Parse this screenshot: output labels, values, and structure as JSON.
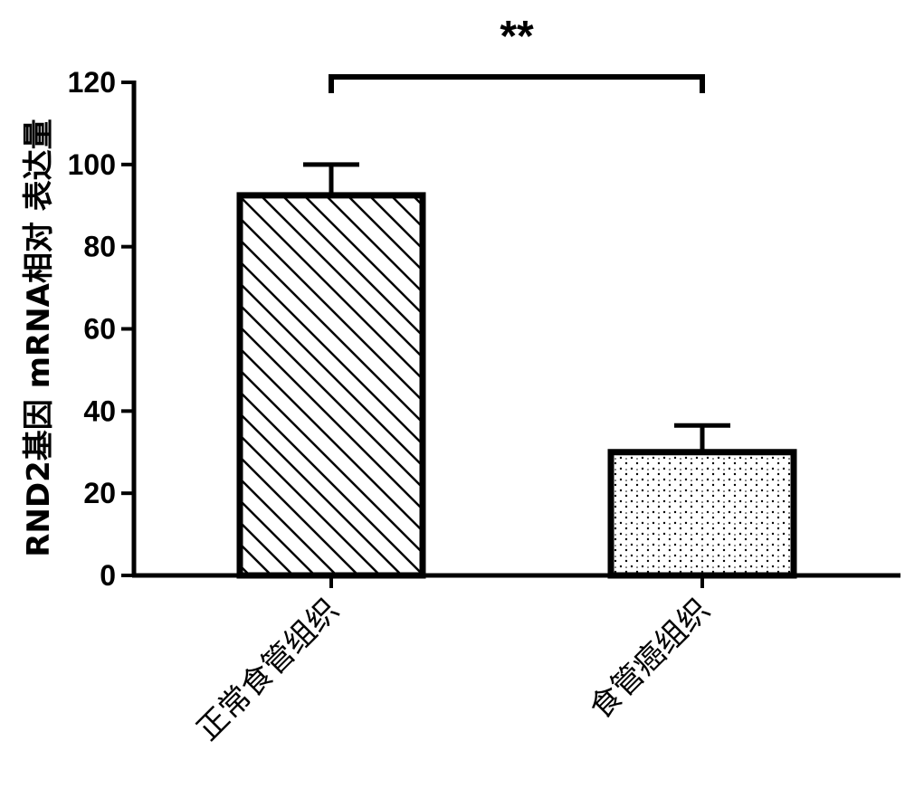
{
  "chart_data": {
    "type": "bar",
    "categories": [
      "正常食管组织",
      "食管癌组织"
    ],
    "values": [
      92.5,
      30.0
    ],
    "error_upper": [
      100.0,
      36.5
    ],
    "ylabel": "RND2基因 mRNA相对 表达量",
    "ylim": [
      0,
      120
    ],
    "yticks": [
      0,
      20,
      40,
      60,
      80,
      100,
      120
    ],
    "significance": "**",
    "fill_patterns": [
      "diagonal-hatch",
      "dots"
    ],
    "grid": false,
    "legend": "none"
  }
}
